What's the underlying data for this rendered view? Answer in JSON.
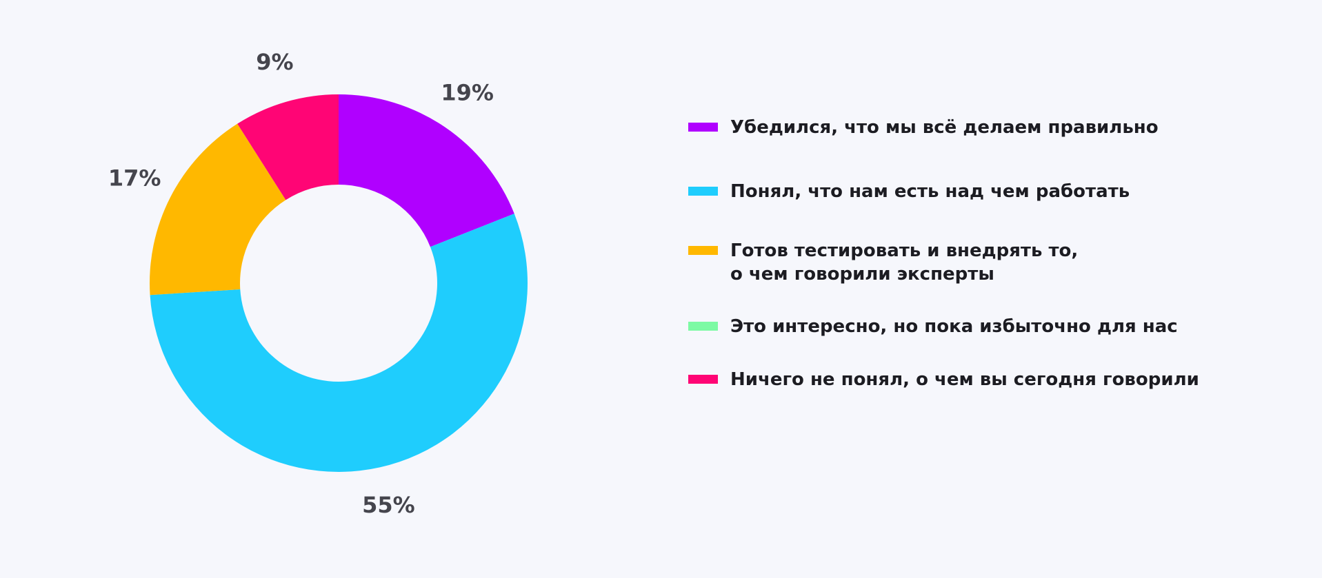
{
  "colors": {
    "background": "#f6f7fc",
    "label": "#45454d",
    "text": "#1c1c22"
  },
  "chart_data": {
    "type": "pie",
    "variant": "donut",
    "title": "",
    "series": [
      {
        "label": "Убедился, что мы всё делаем правильно",
        "value": 19,
        "display": "19%",
        "color": "#b000ff"
      },
      {
        "label": "Понял, что нам есть над чем работать",
        "value": 55,
        "display": "55%",
        "color": "#1fcdfd"
      },
      {
        "label": "Готов тестировать и внедрять то,\nо чем говорили эксперты",
        "value": 17,
        "display": "17%",
        "color": "#ffb800"
      },
      {
        "label": "Это интересно, но пока избыточно для нас",
        "value": 0,
        "display": "",
        "color": "#7dfaa4"
      },
      {
        "label": "Ничего не понял, о чем вы сегодня говорили",
        "value": 9,
        "display": "9%",
        "color": "#ff0575"
      }
    ],
    "legend_position": "right"
  }
}
